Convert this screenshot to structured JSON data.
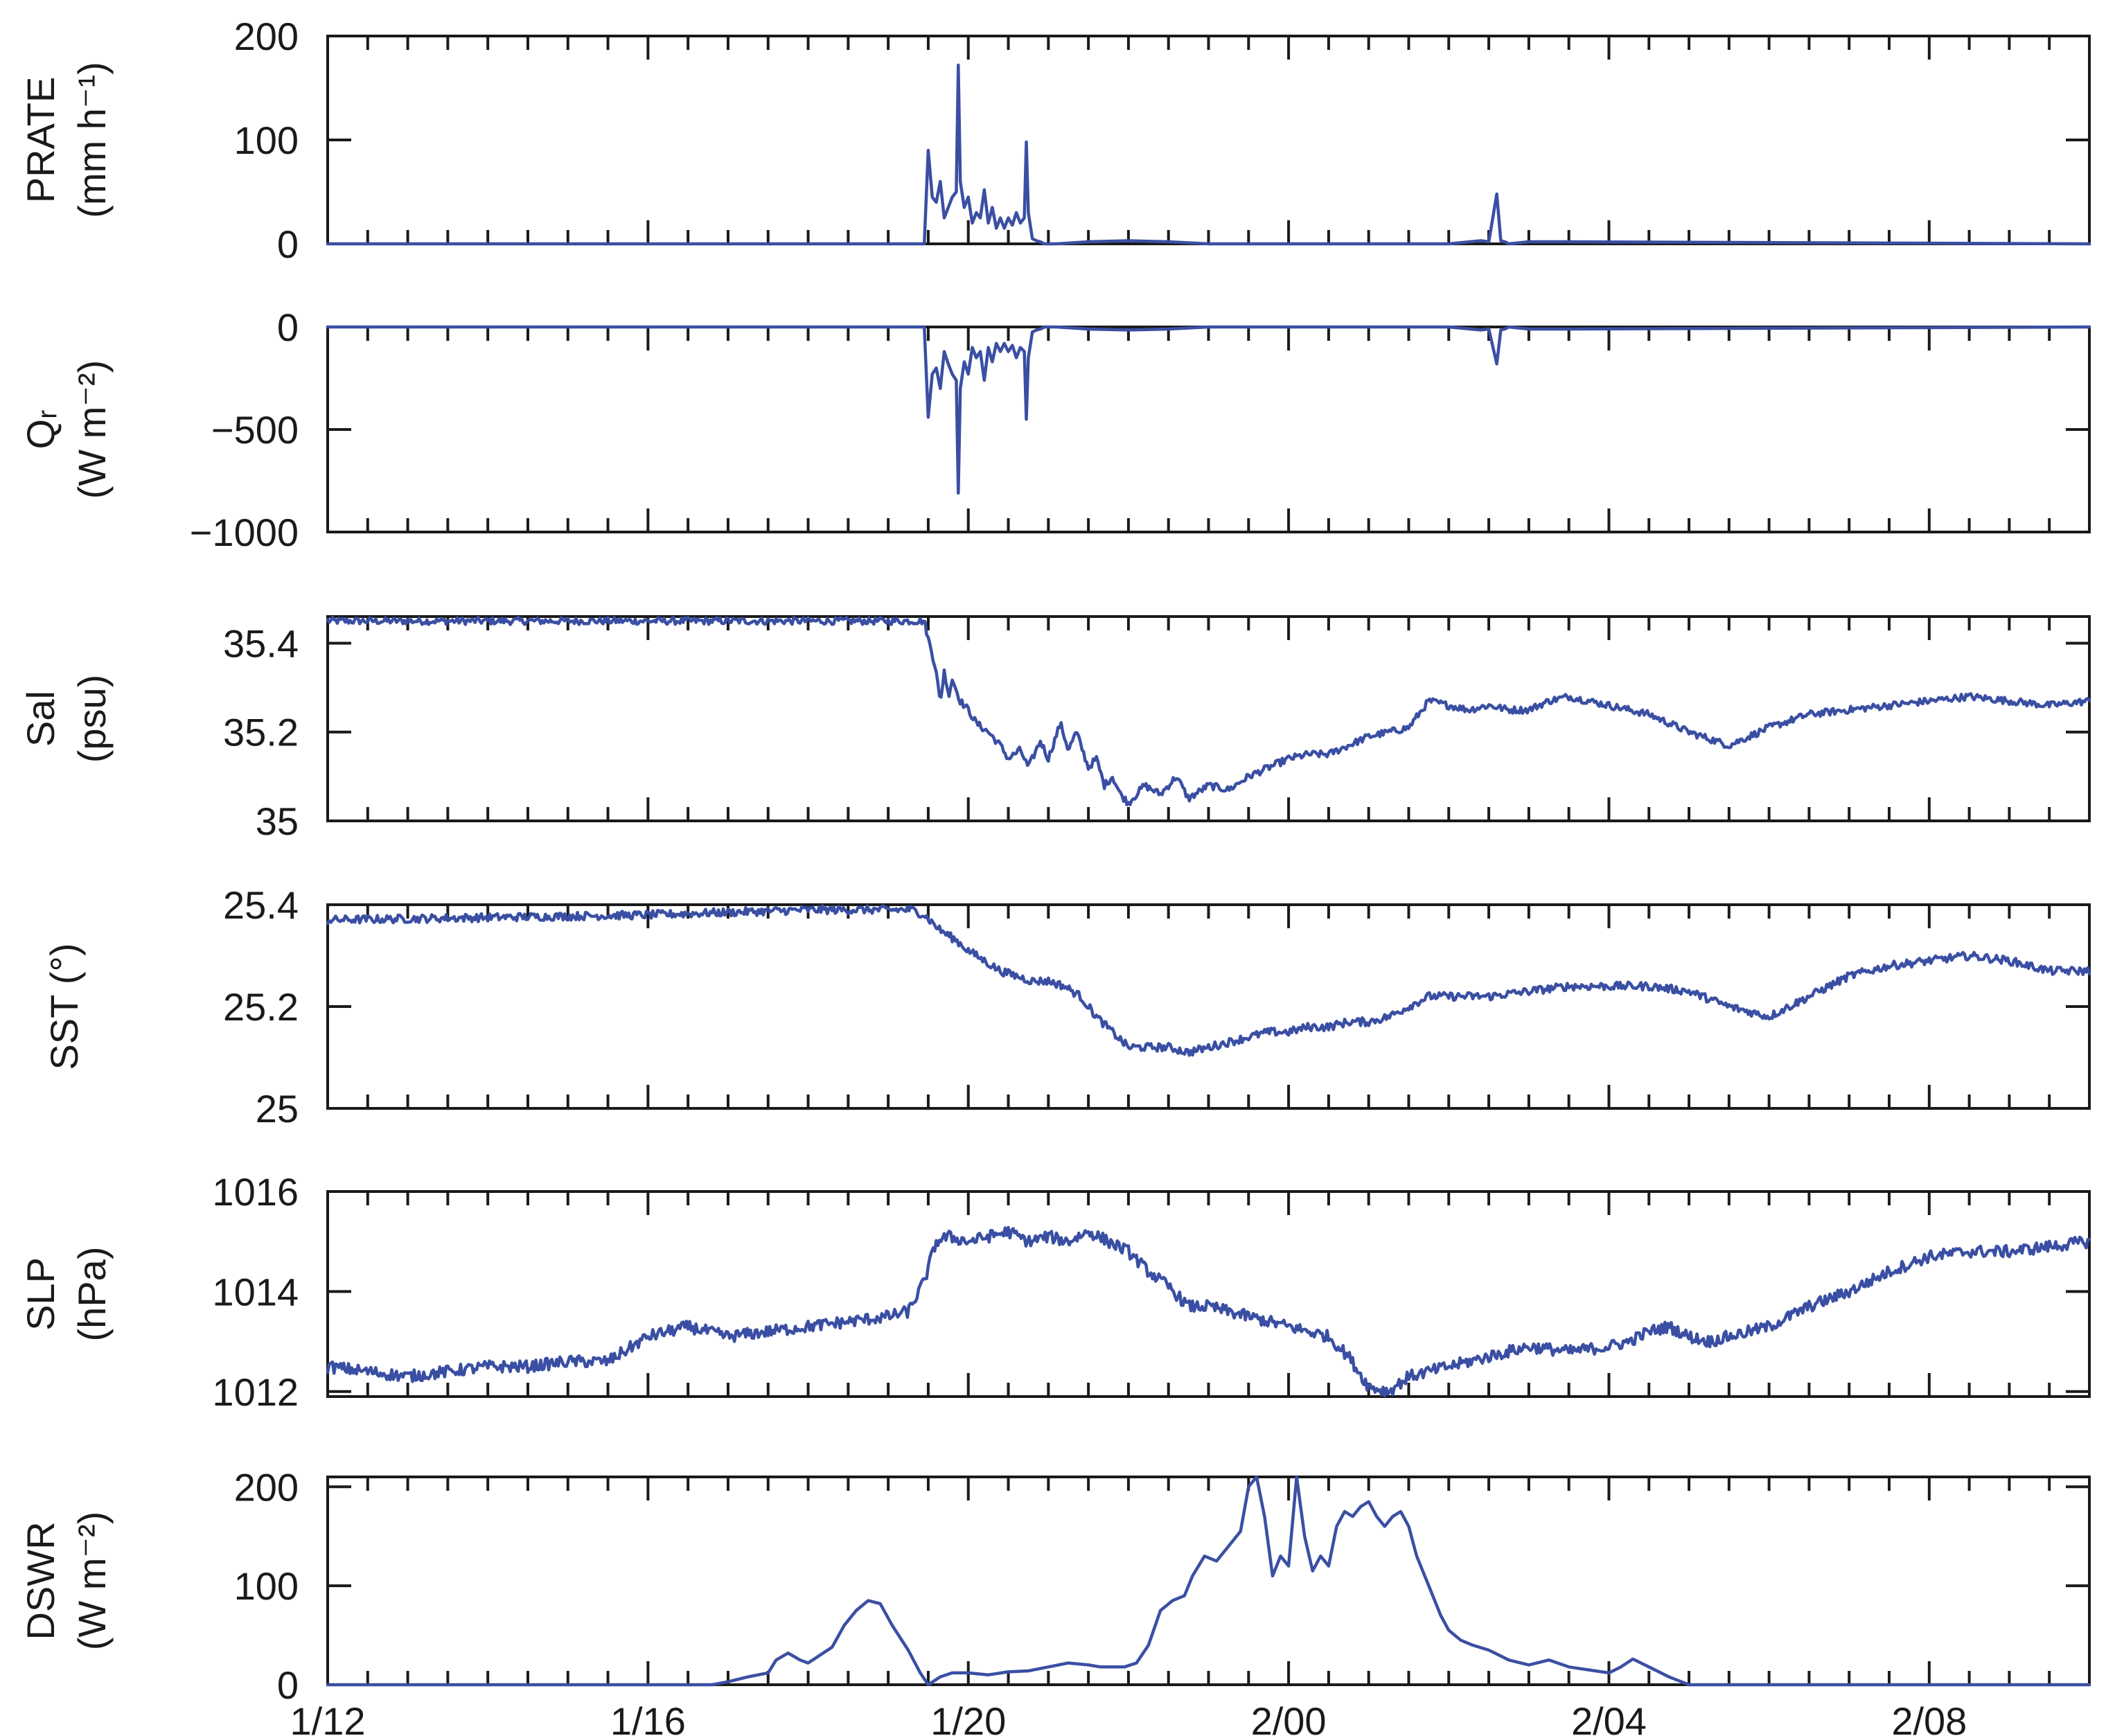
{
  "style": {
    "line_color": "#3a4fa3",
    "axis_color": "#1a1a1a"
  },
  "chart_data": {
    "type": "line",
    "x_ticks": [
      "1/12",
      "1/16",
      "1/20",
      "2/00",
      "2/04",
      "2/08"
    ],
    "x_domain": [
      12,
      56
    ],
    "minor_tick_step": 1,
    "panels": [
      {
        "id": "prate",
        "ylabel_line1": "PRATE",
        "ylabel_line2": "(mm h⁻¹)",
        "ylim": [
          0,
          200
        ],
        "yticks": [
          0,
          100,
          200
        ],
        "ytick_labels": [
          "0",
          "100",
          "200"
        ],
        "series": {
          "x": [
            12,
            26.9,
            27.0,
            27.1,
            27.2,
            27.3,
            27.4,
            27.5,
            27.6,
            27.7,
            27.75,
            27.8,
            27.9,
            28.0,
            28.1,
            28.2,
            28.3,
            28.4,
            28.5,
            28.6,
            28.7,
            28.8,
            28.9,
            29.0,
            29.1,
            29.2,
            29.3,
            29.4,
            29.45,
            29.5,
            29.6,
            29.7,
            29.8,
            29.9,
            30.0,
            30.1,
            30.2,
            31.0,
            32.0,
            33.0,
            34.0,
            40.0,
            40.8,
            41.0,
            41.2,
            41.3,
            41.4,
            41.5,
            42.0,
            43.0,
            56
          ],
          "y": [
            0,
            0,
            90,
            45,
            40,
            60,
            25,
            35,
            45,
            50,
            172,
            60,
            35,
            45,
            20,
            30,
            25,
            52,
            20,
            35,
            15,
            25,
            15,
            25,
            18,
            30,
            20,
            25,
            98,
            30,
            5,
            3,
            2,
            0,
            0,
            0,
            0,
            2,
            3,
            2,
            0,
            0,
            3,
            2,
            48,
            3,
            2,
            0,
            2,
            2,
            0
          ]
        }
      },
      {
        "id": "qr",
        "ylabel_line1": "Qᵣ",
        "ylabel_line2": "(W m⁻²)",
        "ylim": [
          -1000,
          0
        ],
        "yticks": [
          -1000,
          -500,
          0
        ],
        "ytick_labels": [
          "−1000",
          "−500",
          "0"
        ],
        "series": {
          "x": [
            12,
            26.9,
            27.0,
            27.1,
            27.2,
            27.3,
            27.4,
            27.5,
            27.6,
            27.7,
            27.75,
            27.8,
            27.9,
            28.0,
            28.1,
            28.2,
            28.3,
            28.4,
            28.5,
            28.6,
            28.7,
            28.8,
            28.9,
            29.0,
            29.1,
            29.2,
            29.3,
            29.4,
            29.45,
            29.5,
            29.6,
            29.7,
            29.8,
            29.9,
            30.0,
            30.1,
            30.2,
            31.0,
            32.0,
            33.0,
            34.0,
            40.0,
            40.8,
            41.0,
            41.2,
            41.3,
            41.4,
            41.5,
            42.0,
            43.0,
            56
          ],
          "y": [
            0,
            0,
            -440,
            -230,
            -200,
            -300,
            -120,
            -180,
            -230,
            -260,
            -810,
            -300,
            -170,
            -230,
            -100,
            -150,
            -120,
            -260,
            -100,
            -170,
            -80,
            -120,
            -80,
            -120,
            -90,
            -150,
            -100,
            -120,
            -450,
            -150,
            -25,
            -15,
            -10,
            0,
            0,
            0,
            0,
            -10,
            -15,
            -10,
            0,
            0,
            -15,
            -10,
            -180,
            -15,
            -10,
            0,
            -10,
            -10,
            0
          ]
        }
      },
      {
        "id": "sal",
        "ylabel_line1": "Sal",
        "ylabel_line2": "(psu)",
        "ylim": [
          35.0,
          35.46
        ],
        "yticks": [
          35.0,
          35.2,
          35.4
        ],
        "ytick_labels": [
          "35",
          "35.2",
          "35.4"
        ],
        "series": {
          "x": [
            12,
            20,
            26.9,
            27.0,
            27.2,
            27.3,
            27.4,
            27.5,
            27.6,
            27.8,
            28.0,
            28.2,
            28.5,
            28.8,
            29.0,
            29.3,
            29.5,
            29.8,
            30.0,
            30.3,
            30.5,
            30.7,
            31.0,
            31.2,
            31.4,
            31.6,
            31.8,
            32.0,
            32.4,
            32.8,
            33.2,
            33.5,
            34.0,
            34.5,
            35.0,
            35.5,
            36.0,
            36.5,
            37.0,
            37.5,
            38.0,
            38.5,
            39.0,
            39.5,
            40.0,
            40.5,
            41.0,
            41.5,
            42.0,
            42.5,
            43.0,
            43.5,
            44.0,
            44.5,
            45.0,
            46.0,
            47.0,
            48.0,
            49.0,
            50.0,
            51.0,
            52.0,
            53.0,
            54.0,
            55.0,
            56.0
          ],
          "y": [
            35.45,
            35.45,
            35.45,
            35.41,
            35.34,
            35.26,
            35.34,
            35.28,
            35.32,
            35.27,
            35.25,
            35.22,
            35.2,
            35.17,
            35.14,
            35.16,
            35.12,
            35.18,
            35.14,
            35.22,
            35.16,
            35.2,
            35.12,
            35.14,
            35.08,
            35.1,
            35.06,
            35.04,
            35.08,
            35.06,
            35.1,
            35.05,
            35.08,
            35.07,
            35.1,
            35.12,
            35.14,
            35.15,
            35.15,
            35.17,
            35.19,
            35.2,
            35.21,
            35.27,
            35.26,
            35.25,
            35.26,
            35.25,
            35.25,
            35.27,
            35.28,
            35.27,
            35.26,
            35.25,
            35.24,
            35.2,
            35.17,
            35.21,
            35.24,
            35.25,
            35.26,
            35.27,
            35.28,
            35.27,
            35.26,
            35.27
          ],
          "noise": 0.008
        }
      },
      {
        "id": "sst",
        "ylabel_line1": "SST (°)",
        "ylabel_line2": "",
        "ylim": [
          25.0,
          25.4
        ],
        "yticks": [
          25.0,
          25.2,
          25.4
        ],
        "ytick_labels": [
          "25",
          "25.2",
          "25.4"
        ],
        "series": {
          "x": [
            12,
            16,
            20,
            24,
            26.6,
            26.9,
            27.3,
            27.7,
            28.0,
            28.4,
            28.8,
            29.2,
            29.6,
            30.0,
            30.4,
            30.8,
            31.2,
            31.6,
            32.0,
            32.5,
            33.0,
            33.5,
            34.0,
            34.5,
            35.0,
            35.5,
            36.0,
            36.5,
            37.0,
            37.5,
            38.0,
            38.5,
            39.0,
            39.5,
            40.0,
            41.0,
            42.0,
            43.0,
            44.0,
            45.0,
            46.0,
            47.0,
            48.0,
            49.0,
            50.0,
            51.0,
            52.0,
            53.0,
            54.0,
            55.0,
            56.0
          ],
          "y": [
            25.37,
            25.375,
            25.38,
            25.39,
            25.39,
            25.38,
            25.35,
            25.33,
            25.31,
            25.29,
            25.27,
            25.26,
            25.25,
            25.25,
            25.24,
            25.22,
            25.18,
            25.15,
            25.12,
            25.12,
            25.12,
            25.11,
            25.12,
            25.13,
            25.14,
            25.15,
            25.15,
            25.16,
            25.16,
            25.17,
            25.17,
            25.18,
            25.2,
            25.22,
            25.22,
            25.22,
            25.23,
            25.24,
            25.24,
            25.24,
            25.23,
            25.2,
            25.18,
            25.22,
            25.26,
            25.28,
            25.29,
            25.3,
            25.29,
            25.27,
            25.27
          ],
          "noise": 0.008
        }
      },
      {
        "id": "slp",
        "ylabel_line1": "SLP",
        "ylabel_line2": "(hPa)",
        "ylim": [
          1011.9,
          1016
        ],
        "yticks": [
          1012,
          1014,
          1016
        ],
        "ytick_labels": [
          "1012",
          "1014",
          "1016"
        ],
        "series": {
          "x": [
            12,
            14,
            16,
            17,
            18,
            19,
            20,
            21,
            22,
            24,
            25,
            26,
            26.5,
            26.9,
            27.2,
            27.5,
            28.0,
            28.5,
            29.0,
            29.5,
            30.0,
            30.5,
            31.0,
            31.5,
            32.0,
            32.5,
            33.0,
            33.5,
            34.0,
            35.0,
            36.0,
            36.5,
            37.0,
            37.5,
            38.0,
            38.5,
            39.0,
            40.0,
            41.0,
            42.0,
            43.0,
            44.0,
            44.5,
            45.0,
            45.5,
            46.0,
            46.5,
            47.0,
            48.0,
            49.0,
            50.0,
            51.0,
            52.0,
            53.0,
            54.0,
            55.0,
            56.0
          ],
          "y": [
            1012.5,
            1012.3,
            1012.5,
            1012.5,
            1012.6,
            1012.6,
            1013.1,
            1013.3,
            1013.1,
            1013.3,
            1013.4,
            1013.5,
            1013.6,
            1014.2,
            1015.0,
            1015.1,
            1015.0,
            1015.1,
            1015.2,
            1015.0,
            1015.1,
            1015.0,
            1015.2,
            1015.0,
            1014.8,
            1014.4,
            1014.1,
            1013.7,
            1013.7,
            1013.5,
            1013.3,
            1013.2,
            1013.1,
            1012.7,
            1012.1,
            1012.0,
            1012.3,
            1012.5,
            1012.7,
            1012.9,
            1012.8,
            1012.9,
            1013.0,
            1013.2,
            1013.3,
            1013.1,
            1013.0,
            1013.1,
            1013.3,
            1013.7,
            1014.0,
            1014.4,
            1014.7,
            1014.8,
            1014.8,
            1014.9,
            1015.0
          ],
          "noise": 0.12
        }
      },
      {
        "id": "dswr",
        "ylabel_line1": "DSWR",
        "ylabel_line2": "(W m⁻²)",
        "ylim": [
          0,
          210
        ],
        "yticks": [
          0,
          100,
          200
        ],
        "ytick_labels": [
          "0",
          "100",
          "200"
        ],
        "series": {
          "x": [
            12,
            21.6,
            22.0,
            22.5,
            23.0,
            23.2,
            23.5,
            23.8,
            24.0,
            24.3,
            24.6,
            24.9,
            25.2,
            25.5,
            25.8,
            26.1,
            26.5,
            26.8,
            27.0,
            27.3,
            27.6,
            28.0,
            28.5,
            29.0,
            29.5,
            30.0,
            30.5,
            31.0,
            31.3,
            31.6,
            31.9,
            32.2,
            32.5,
            32.8,
            33.1,
            33.4,
            33.6,
            33.9,
            34.2,
            34.5,
            34.8,
            35.0,
            35.2,
            35.4,
            35.6,
            35.8,
            36.0,
            36.2,
            36.4,
            36.6,
            36.8,
            37.0,
            37.2,
            37.4,
            37.6,
            37.8,
            38.0,
            38.2,
            38.4,
            38.6,
            38.8,
            39.0,
            39.2,
            39.5,
            39.8,
            40.0,
            40.3,
            40.6,
            41.0,
            41.5,
            42.0,
            42.5,
            43.0,
            43.5,
            44.0,
            44.3,
            44.6,
            45.0,
            45.5,
            46.0,
            56.0
          ],
          "y": [
            0,
            0,
            3,
            8,
            12,
            25,
            32,
            25,
            22,
            30,
            38,
            60,
            75,
            85,
            82,
            60,
            35,
            12,
            0,
            8,
            12,
            12,
            10,
            13,
            14,
            18,
            22,
            20,
            18,
            18,
            18,
            22,
            40,
            75,
            85,
            90,
            110,
            130,
            125,
            140,
            155,
            200,
            210,
            170,
            110,
            130,
            120,
            212,
            150,
            115,
            130,
            120,
            160,
            175,
            170,
            180,
            185,
            170,
            160,
            170,
            175,
            160,
            130,
            100,
            70,
            55,
            45,
            40,
            35,
            25,
            20,
            25,
            18,
            15,
            12,
            18,
            26,
            18,
            8,
            0,
            0
          ]
        }
      }
    ]
  }
}
